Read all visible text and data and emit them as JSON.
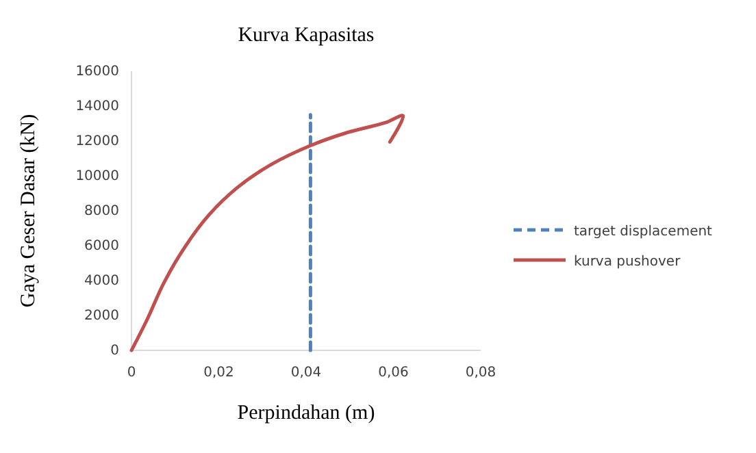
{
  "chart_data": {
    "type": "line",
    "title": "Kurva Kapasitas",
    "xlabel": "Perpindahan (m)",
    "ylabel": "Gaya Geser Dasar (kN)",
    "xlim": [
      0,
      0.08
    ],
    "xticks": [
      {
        "value": 0,
        "label": "0"
      },
      {
        "value": 0.02,
        "label": "0,02"
      },
      {
        "value": 0.04,
        "label": "0,04"
      },
      {
        "value": 0.06,
        "label": "0,06"
      },
      {
        "value": 0.08,
        "label": "0,08"
      }
    ],
    "ylim": [
      0,
      16000
    ],
    "yticks": [
      0,
      2000,
      4000,
      6000,
      8000,
      10000,
      12000,
      14000,
      16000
    ],
    "legend": "right",
    "grid": false,
    "series": [
      {
        "name": "target displacement",
        "color": "#4f81bd",
        "line_style": "dashed",
        "x": [
          0.041,
          0.041
        ],
        "values": [
          0,
          13500
        ]
      },
      {
        "name": "kurva pushover",
        "color": "#c0504d",
        "line_style": "solid",
        "x": [
          0,
          0.0036,
          0.0074,
          0.0123,
          0.0178,
          0.0243,
          0.032,
          0.0411,
          0.0494,
          0.0582,
          0.0622,
          0.0592
        ],
        "values": [
          0,
          1775,
          3860,
          5950,
          7780,
          9340,
          10650,
          11745,
          12480,
          13050,
          13440,
          11950
        ]
      }
    ]
  }
}
